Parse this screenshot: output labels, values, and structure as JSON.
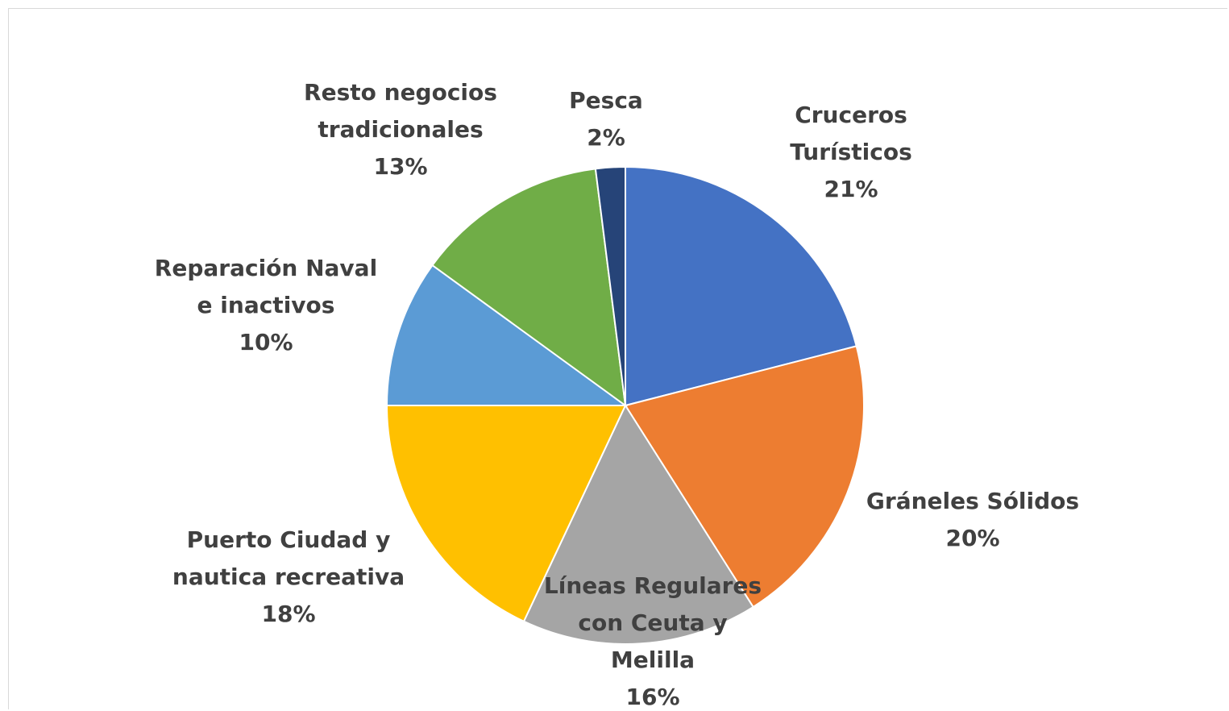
{
  "chart_data": {
    "type": "pie",
    "title": "",
    "slices": [
      {
        "label_lines": [
          "Cruceros",
          "Turísticos"
        ],
        "value_label": "21%",
        "value": 21,
        "color": "#4472C4"
      },
      {
        "label_lines": [
          "Gráneles Sólidos"
        ],
        "value_label": "20%",
        "value": 20,
        "color": "#ED7D31"
      },
      {
        "label_lines": [
          "Líneas Regulares",
          "con Ceuta y",
          "Melilla"
        ],
        "value_label": "16%",
        "value": 16,
        "color": "#A5A5A5"
      },
      {
        "label_lines": [
          "Puerto Ciudad  y",
          "nautica  recreativa"
        ],
        "value_label": "18%",
        "value": 18,
        "color": "#FFC000"
      },
      {
        "label_lines": [
          "Reparación  Naval",
          "e inactivos"
        ],
        "value_label": "10%",
        "value": 10,
        "color": "#5B9BD5"
      },
      {
        "label_lines": [
          "Resto negocios",
          "tradicionales"
        ],
        "value_label": "13%",
        "value": 13,
        "color": "#70AD47"
      },
      {
        "label_lines": [
          "Pesca"
        ],
        "value_label": "2%",
        "value": 2,
        "color": "#264478"
      }
    ],
    "start_angle_deg": 0,
    "direction": "clockwise",
    "legend": "none",
    "data_labels": "outside"
  }
}
